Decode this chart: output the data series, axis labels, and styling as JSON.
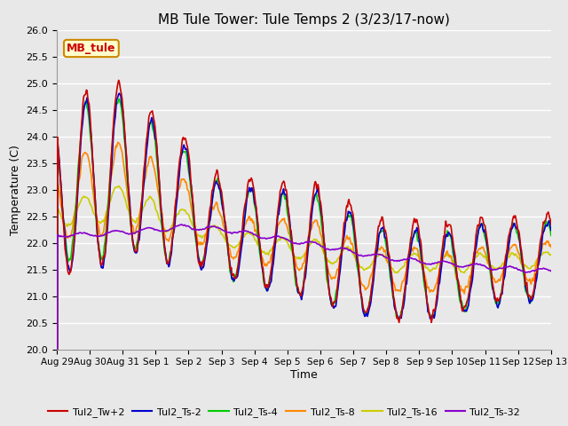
{
  "title": "MB Tule Tower: Tule Temps 2 (3/23/17-now)",
  "xlabel": "Time",
  "ylabel": "Temperature (C)",
  "ylim": [
    20.0,
    26.0
  ],
  "yticks": [
    20.0,
    20.5,
    21.0,
    21.5,
    22.0,
    22.5,
    23.0,
    23.5,
    24.0,
    24.5,
    25.0,
    25.5,
    26.0
  ],
  "background_color": "#e8e8e8",
  "plot_bg_color": "#e8e8e8",
  "grid_color": "#ffffff",
  "series_colors": {
    "Tul2_Tw+2": "#cc0000",
    "Tul2_Ts-2": "#0000cc",
    "Tul2_Ts-4": "#00cc00",
    "Tul2_Ts-8": "#ff8800",
    "Tul2_Ts-16": "#cccc00",
    "Tul2_Ts-32": "#8800cc"
  },
  "annotation_text": "MB_tule",
  "annotation_color": "#cc0000",
  "annotation_bg": "#ffffcc",
  "annotation_border": "#cc8800",
  "n_days": 15,
  "pts_per_day": 48,
  "x_tick_labels": [
    "Aug 29",
    "Aug 30",
    "Aug 31",
    "Sep 1",
    "Sep 2",
    "Sep 3",
    "Sep 4",
    "Sep 5",
    "Sep 6",
    "Sep 7",
    "Sep 8",
    "Sep 9",
    "Sep 10",
    "Sep 11",
    "Sep 12",
    "Sep 13"
  ],
  "line_width": 1.2,
  "figsize": [
    6.4,
    4.8
  ],
  "dpi": 100
}
